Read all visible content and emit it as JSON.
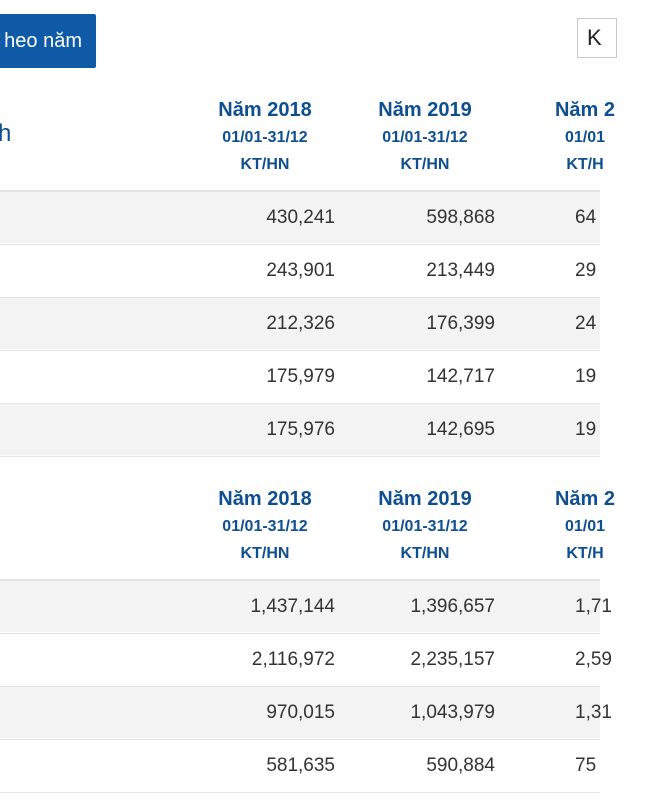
{
  "toolbar": {
    "period_button_label": "heo năm",
    "top_right_box_text": "K"
  },
  "section1": {
    "label": "h",
    "columns": [
      {
        "year": "Năm 2018",
        "range": "01/01-31/12",
        "unit": "KT/HN"
      },
      {
        "year": "Năm 2019",
        "range": "01/01-31/12",
        "unit": "KT/HN"
      },
      {
        "year": "Năm 2",
        "range": "01/01",
        "unit": "KT/H"
      }
    ],
    "rows": [
      {
        "v1": "430,241",
        "v2": "598,868",
        "v3": "64"
      },
      {
        "v1": "243,901",
        "v2": "213,449",
        "v3": "29"
      },
      {
        "v1": "212,326",
        "v2": "176,399",
        "v3": "24"
      },
      {
        "v1": "175,979",
        "v2": "142,717",
        "v3": "19"
      },
      {
        "v1": "175,976",
        "v2": "142,695",
        "v3": "19"
      }
    ]
  },
  "section2": {
    "columns": [
      {
        "year": "Năm 2018",
        "range": "01/01-31/12",
        "unit": "KT/HN"
      },
      {
        "year": "Năm 2019",
        "range": "01/01-31/12",
        "unit": "KT/HN"
      },
      {
        "year": "Năm 2",
        "range": "01/01",
        "unit": "KT/H"
      }
    ],
    "rows": [
      {
        "v1": "1,437,144",
        "v2": "1,396,657",
        "v3": "1,71"
      },
      {
        "v1": "2,116,972",
        "v2": "2,235,157",
        "v3": "2,59"
      },
      {
        "v1": "970,015",
        "v2": "1,043,979",
        "v3": "1,31"
      },
      {
        "v1": "581,635",
        "v2": "590,884",
        "v3": "75"
      }
    ]
  }
}
